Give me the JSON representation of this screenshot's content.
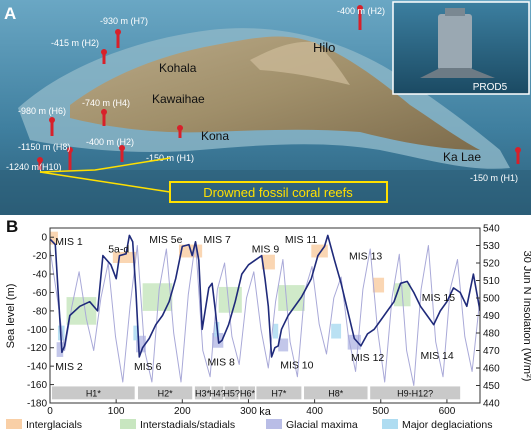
{
  "panel_a": {
    "label": "A",
    "site_labels": [
      "Kohala",
      "Kawaihae",
      "Kona",
      "Hilo",
      "Ka Lae"
    ],
    "depth_labels": [
      "-930 m (H7)",
      "-400 m (H2)",
      "-415 m (H2)",
      "-980 m (H6)",
      "-740 m (H4)",
      "-1150 m (H8)",
      "-400 m (H2)",
      "-1240 m(H10)",
      "-150 m (H1)",
      "-150 m (H1)"
    ],
    "inset_label": "PROD5",
    "callout": "Drowned fossil coral reefs",
    "colors": {
      "ocean": "#4a88a8",
      "reef_marker": "#d8202a",
      "callout_border": "#ffe000"
    }
  },
  "panel_b": {
    "label": "B",
    "mis_labels": [
      "MIS 1",
      "5a-d",
      "MIS 5e",
      "MIS 7",
      "MIS 9",
      "MIS 11",
      "MIS 13",
      "MIS 15",
      "MIS 2",
      "MIS 6",
      "MIS 8",
      "MIS 10",
      "MIS 12",
      "MIS 14"
    ],
    "reef_bars": [
      "H1*",
      "H2*",
      "H3*",
      "H4?",
      "H5?",
      "H6*",
      "H7*",
      "H8*",
      "H9-H12?"
    ],
    "legend": [
      {
        "label": "Interglacials",
        "color": "#f9cfa6"
      },
      {
        "label": "Interstadials/stadials",
        "color": "#c8e6c0"
      },
      {
        "label": "Glacial maxima",
        "color": "#b9bde6"
      },
      {
        "label": "Major deglaciations",
        "color": "#aedcf1"
      }
    ],
    "chart_data": {
      "type": "line",
      "xlabel": "ka",
      "ylabel": "Sea level (m)",
      "y2label": "30 Jun N Insolation (W/m²)",
      "xlim": [
        0,
        650
      ],
      "ylim": [
        -180,
        10
      ],
      "y2lim": [
        440,
        540
      ],
      "x_ticks": [
        0,
        100,
        200,
        300,
        400,
        500,
        600
      ],
      "y_ticks": [
        0,
        -20,
        -40,
        -60,
        -80,
        -100,
        -120,
        -140,
        -160,
        -180
      ],
      "y2_ticks": [
        540,
        530,
        520,
        510,
        500,
        490,
        480,
        470,
        460,
        450,
        440
      ],
      "series": [
        {
          "name": "sea_level",
          "color": "#1f2a7a",
          "x": [
            0,
            8,
            12,
            18,
            22,
            30,
            45,
            60,
            72,
            80,
            92,
            100,
            105,
            115,
            120,
            125,
            130,
            135,
            140,
            150,
            160,
            170,
            180,
            190,
            200,
            210,
            215,
            220,
            225,
            230,
            240,
            245,
            250,
            255,
            260,
            270,
            280,
            290,
            300,
            310,
            320,
            325,
            330,
            335,
            340,
            345,
            350,
            360,
            380,
            395,
            405,
            415,
            420,
            430,
            440,
            450,
            460,
            470,
            480,
            490,
            500,
            510,
            520,
            530,
            540,
            550,
            560,
            570,
            580,
            590,
            600,
            610,
            620,
            630,
            640,
            650
          ],
          "y": [
            -2,
            -8,
            -55,
            -125,
            -118,
            -85,
            -75,
            -70,
            -80,
            -20,
            -30,
            -45,
            -20,
            -18,
            2,
            -5,
            -60,
            -130,
            -120,
            -110,
            -95,
            -85,
            -70,
            -45,
            -10,
            -8,
            -20,
            -5,
            -25,
            -100,
            -55,
            -50,
            -80,
            -115,
            -112,
            -95,
            -70,
            -40,
            -30,
            -25,
            -20,
            -45,
            -75,
            -130,
            -120,
            -118,
            -100,
            -85,
            -65,
            -45,
            -20,
            -10,
            2,
            -25,
            -50,
            -80,
            -110,
            -118,
            -105,
            -100,
            -90,
            -80,
            -70,
            -50,
            -48,
            -60,
            -75,
            -85,
            -95,
            -80,
            -70,
            -55,
            -60,
            -75,
            -40,
            -80
          ]
        },
        {
          "name": "insolation",
          "color": "#a9a9d8",
          "x": [
            0,
            11,
            22,
            33,
            44,
            55,
            66,
            77,
            88,
            99,
            110,
            121,
            132,
            143,
            154,
            165,
            176,
            187,
            198,
            209,
            220,
            231,
            242,
            253,
            264,
            275,
            286,
            297,
            308,
            319,
            330,
            341,
            352,
            363,
            374,
            385,
            396,
            407,
            418,
            429,
            440,
            451,
            462,
            473,
            484,
            495,
            506,
            517,
            528,
            539,
            550,
            561,
            572,
            583,
            594,
            605,
            616,
            627,
            638,
            650
          ],
          "y": [
            528,
            500,
            470,
            495,
            515,
            488,
            470,
            500,
            520,
            478,
            452,
            495,
            530,
            470,
            452,
            505,
            528,
            480,
            452,
            502,
            532,
            470,
            455,
            505,
            520,
            478,
            462,
            500,
            515,
            482,
            460,
            498,
            522,
            475,
            455,
            504,
            518,
            485,
            468,
            500,
            512,
            478,
            458,
            505,
            528,
            482,
            452,
            500,
            525,
            470,
            450,
            505,
            530,
            475,
            455,
            505,
            522,
            478,
            458,
            500
          ]
        }
      ]
    }
  }
}
